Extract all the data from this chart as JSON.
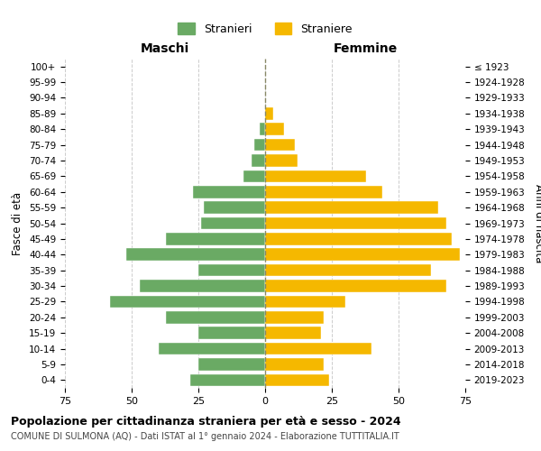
{
  "age_groups": [
    "0-4",
    "5-9",
    "10-14",
    "15-19",
    "20-24",
    "25-29",
    "30-34",
    "35-39",
    "40-44",
    "45-49",
    "50-54",
    "55-59",
    "60-64",
    "65-69",
    "70-74",
    "75-79",
    "80-84",
    "85-89",
    "90-94",
    "95-99",
    "100+"
  ],
  "birth_years": [
    "2019-2023",
    "2014-2018",
    "2009-2013",
    "2004-2008",
    "1999-2003",
    "1994-1998",
    "1989-1993",
    "1984-1988",
    "1979-1983",
    "1974-1978",
    "1969-1973",
    "1964-1968",
    "1959-1963",
    "1954-1958",
    "1949-1953",
    "1944-1948",
    "1939-1943",
    "1934-1938",
    "1929-1933",
    "1924-1928",
    "≤ 1923"
  ],
  "males": [
    28,
    25,
    40,
    25,
    37,
    58,
    47,
    25,
    52,
    37,
    24,
    23,
    27,
    8,
    5,
    4,
    2,
    0,
    0,
    0,
    0
  ],
  "females": [
    24,
    22,
    40,
    21,
    22,
    30,
    68,
    62,
    73,
    70,
    68,
    65,
    44,
    38,
    12,
    11,
    7,
    3,
    0,
    0,
    0
  ],
  "male_color": "#6aaa64",
  "female_color": "#f5b800",
  "male_label": "Stranieri",
  "female_label": "Straniere",
  "title": "Popolazione per cittadinanza straniera per età e sesso - 2024",
  "subtitle": "COMUNE DI SULMONA (AQ) - Dati ISTAT al 1° gennaio 2024 - Elaborazione TUTTITALIA.IT",
  "xlabel_left": "Maschi",
  "xlabel_right": "Femmine",
  "ylabel_left": "Fasce di età",
  "ylabel_right": "Anni di nascita",
  "xlim": 75,
  "background_color": "#ffffff",
  "grid_color": "#cccccc"
}
